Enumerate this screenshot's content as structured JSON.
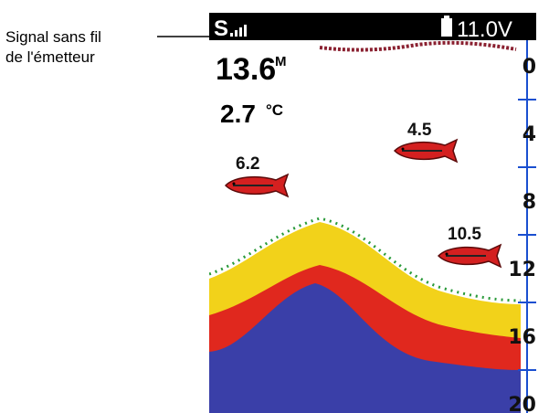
{
  "annotation": {
    "lines": [
      "Signal sans fil",
      "de l'émetteur"
    ]
  },
  "header": {
    "signal": "S",
    "voltage": "11.0V"
  },
  "readout": {
    "depth": "13.6",
    "depth_unit": "M",
    "temperature": "2.7",
    "temperature_unit": "°C"
  },
  "fish": [
    {
      "label": "6.2"
    },
    {
      "label": "4.5"
    },
    {
      "label": "10.5"
    }
  ],
  "depth_scale": [
    "0",
    "4",
    "8",
    "12",
    "16",
    "20"
  ]
}
